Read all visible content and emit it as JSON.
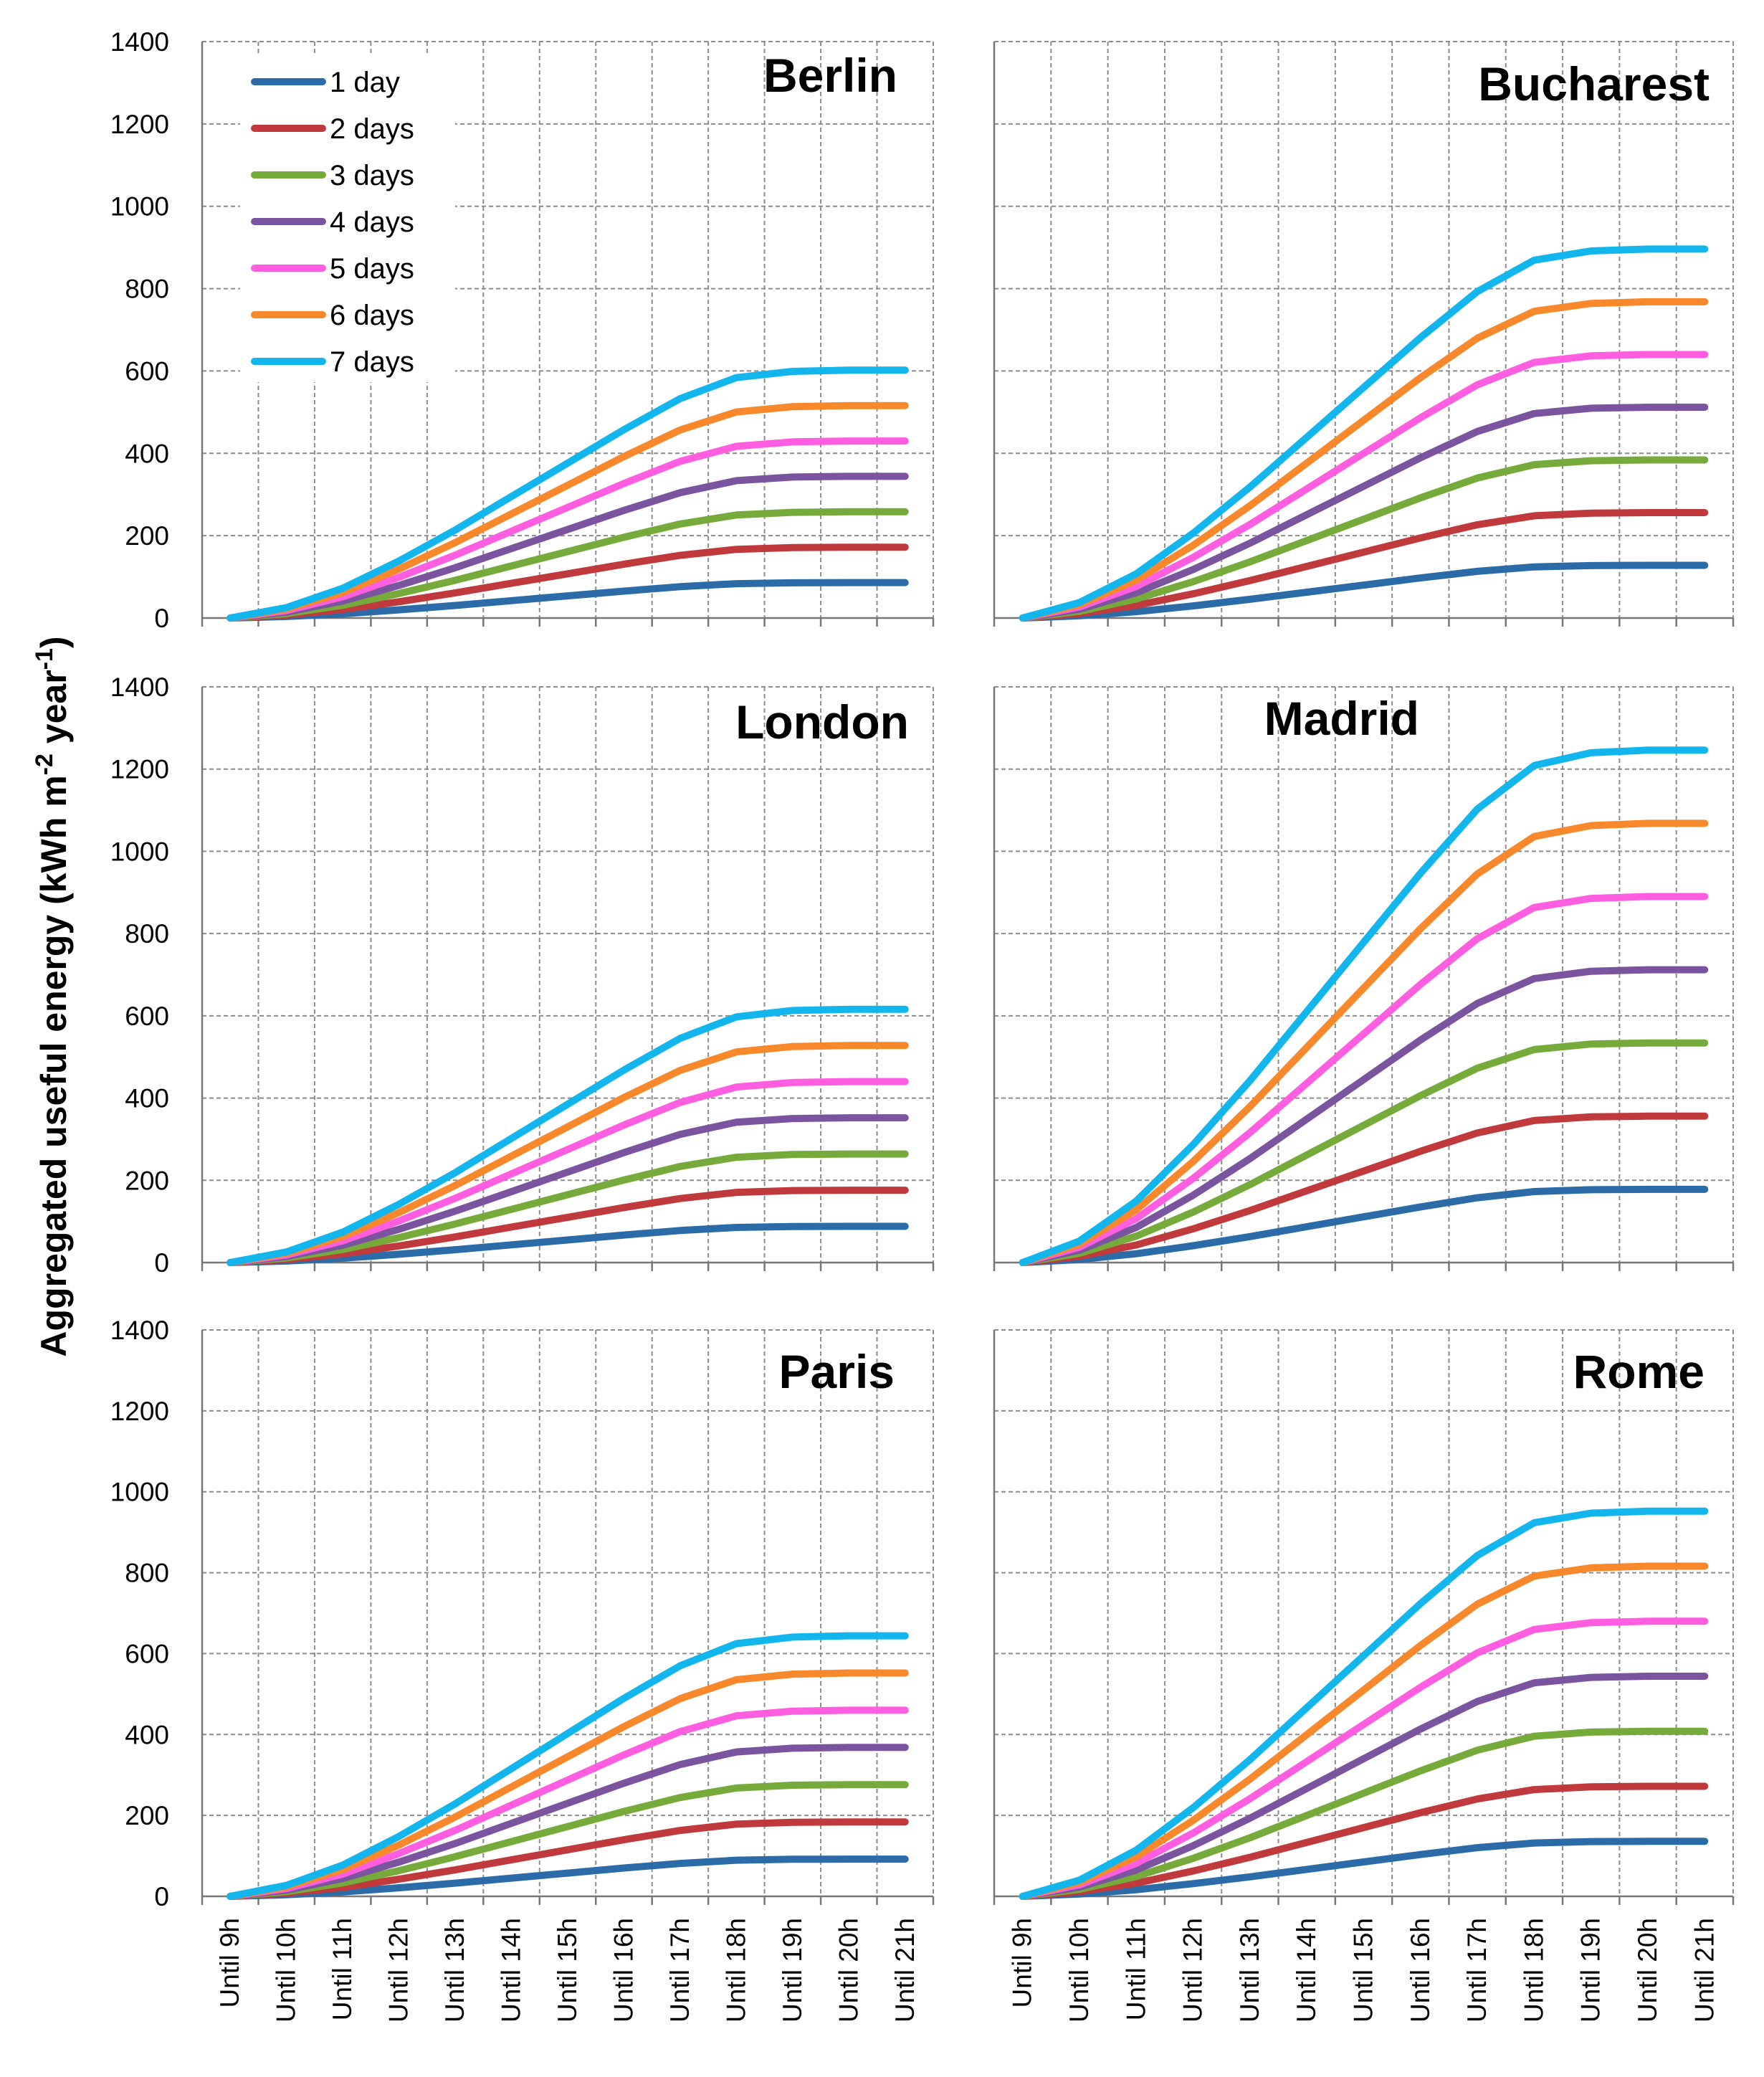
{
  "chart_data": {
    "type": "line",
    "ylabel": "Aggregated useful energy (kWh m-2 year-1)",
    "ylabel_parts": {
      "pre": "Aggregated useful energy (kWh m",
      "sup1": "-2",
      "mid": " year",
      "sup2": "-1",
      "post": ")"
    },
    "ylim": [
      0,
      1400
    ],
    "yticks": [
      "0",
      "200",
      "400",
      "600",
      "800",
      "1000",
      "1200",
      "1400"
    ],
    "categories": [
      "Until 9h",
      "Until 10h",
      "Until 11h",
      "Until 12h",
      "Until 13h",
      "Until 14h",
      "Until 15h",
      "Until 16h",
      "Until 17h",
      "Until 18h",
      "Until 19h",
      "Until 20h",
      "Until 21h"
    ],
    "legend": [
      {
        "name": "1 day",
        "color": "#2b6ca8"
      },
      {
        "name": "2 days",
        "color": "#c0393c"
      },
      {
        "name": "3 days",
        "color": "#76aa3a"
      },
      {
        "name": "4 days",
        "color": "#7a549e"
      },
      {
        "name": "5 days",
        "color": "#ff5ee0"
      },
      {
        "name": "6 days",
        "color": "#f7882b"
      },
      {
        "name": "7 days",
        "color": "#12b5ec"
      }
    ],
    "base_shape": [
      0,
      0.042,
      0.12,
      0.23,
      0.355,
      0.49,
      0.625,
      0.76,
      0.885,
      0.97,
      0.995,
      1.0,
      1.0
    ],
    "panels": [
      {
        "city": "Berlin",
        "day1_final": 86
      },
      {
        "city": "Bucharest",
        "day1_final": 128
      },
      {
        "city": "London",
        "day1_final": 88
      },
      {
        "city": "Madrid",
        "day1_final": 178
      },
      {
        "city": "Paris",
        "day1_final": 92
      },
      {
        "city": "Rome",
        "day1_final": 136
      }
    ]
  }
}
